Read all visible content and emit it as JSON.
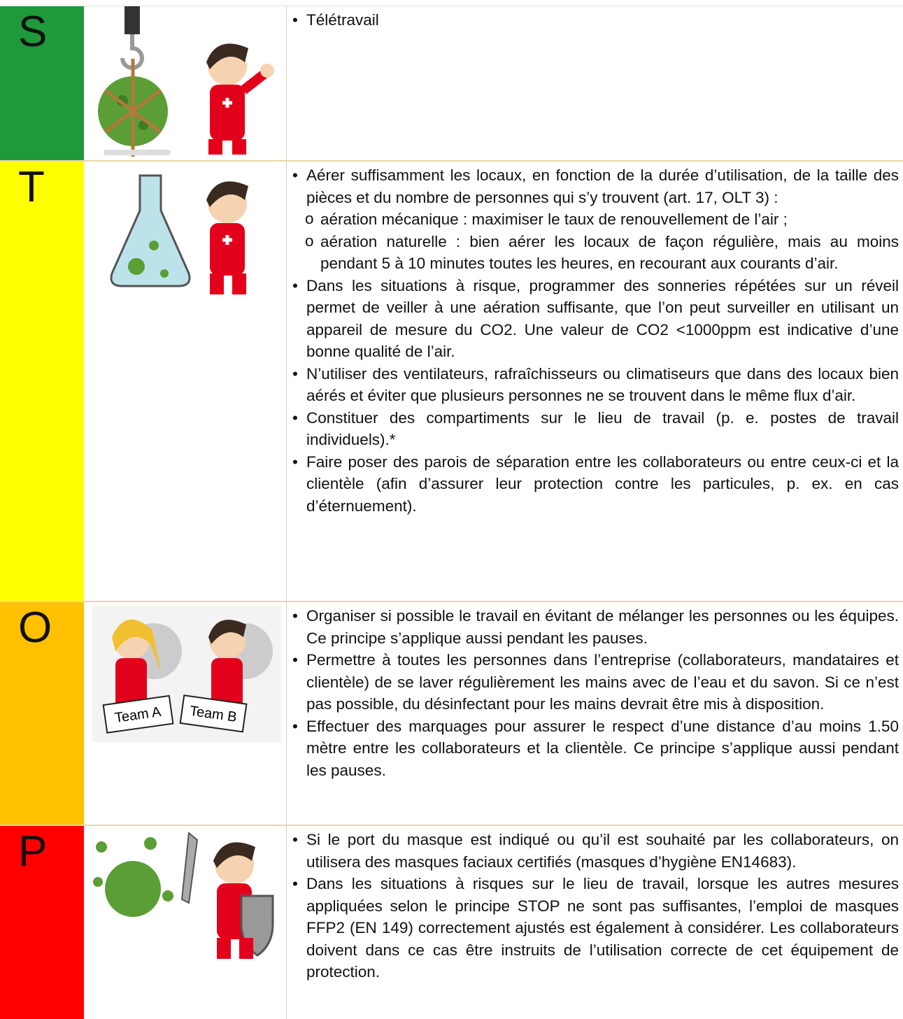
{
  "rows": [
    {
      "letter": "S",
      "items": [
        {
          "text": "Télétravail"
        }
      ]
    },
    {
      "letter": "T",
      "items": [
        {
          "text": "Aérer suffisamment les locaux, en fonction de la durée d’utilisation, de la taille des pièces et du nombre de personnes qui s’y trouvent (art. 17, OLT 3) :",
          "subitems": [
            "aération mécanique : maximiser le taux de renouvellement de l’air ;",
            "aération naturelle : bien aérer les locaux de façon régulière, mais au moins pendant 5 à 10 minutes toutes les heures, en recourant aux courants d’air."
          ]
        },
        {
          "text": "Dans les situations à risque, programmer des sonneries répétées sur un réveil permet de veiller à une aération suffisante, que l’on peut surveiller en utilisant un appareil de mesure du CO2. Une valeur de CO2 <1000ppm est indicative d’une bonne qualité de l’air."
        },
        {
          "text": "N’utiliser des ventilateurs, rafraîchisseurs ou climatiseurs que dans des locaux bien aérés et éviter que plusieurs personnes ne se trouvent dans le même flux d’air."
        },
        {
          "text": "Constituer des compartiments sur le lieu de travail (p. e. postes de travail individuels).*"
        },
        {
          "text": "Faire poser des parois de séparation entre les collaborateurs ou entre ceux-ci et la clientèle (afin d’assurer leur protection contre les particules, p. ex. en cas d’éternuement)."
        }
      ]
    },
    {
      "letter": "O",
      "image_labels": [
        "Team A",
        "Team B"
      ],
      "items": [
        {
          "text": "Organiser si possible le travail en évitant de mélanger les personnes ou les équipes. Ce principe s’applique aussi pendant les pauses."
        },
        {
          "text": "Permettre à toutes les personnes dans l’entreprise (collaborateurs, mandataires et clientèle) de se laver régulièrement les mains avec de l’eau et du savon. Si ce n’est pas possible, du désinfectant pour les mains devrait être mis à disposition."
        },
        {
          "text": "Effectuer des marquages pour assurer le respect d’une distance d’au moins 1.50 mètre entre les collaborateurs et la clientèle. Ce principe s’applique aussi pendant les pauses."
        }
      ]
    },
    {
      "letter": "P",
      "items": [
        {
          "text": "Si le port du masque est indiqué ou qu’il est souhaité par les collaborateurs, on utilisera des masques faciaux certifiés (masques d’hygiène EN14683)."
        },
        {
          "text": "Dans les situations à risques sur le lieu de travail, lorsque les autres mesures appliquées selon le principe STOP ne sont pas suffisantes, l’emploi de masques FFP2 (EN 149) correctement ajustés est également à considérer. Les collaborateurs doivent dans ce cas être instruits de l’utilisation correcte de cet équipement de protection."
        }
      ]
    }
  ]
}
